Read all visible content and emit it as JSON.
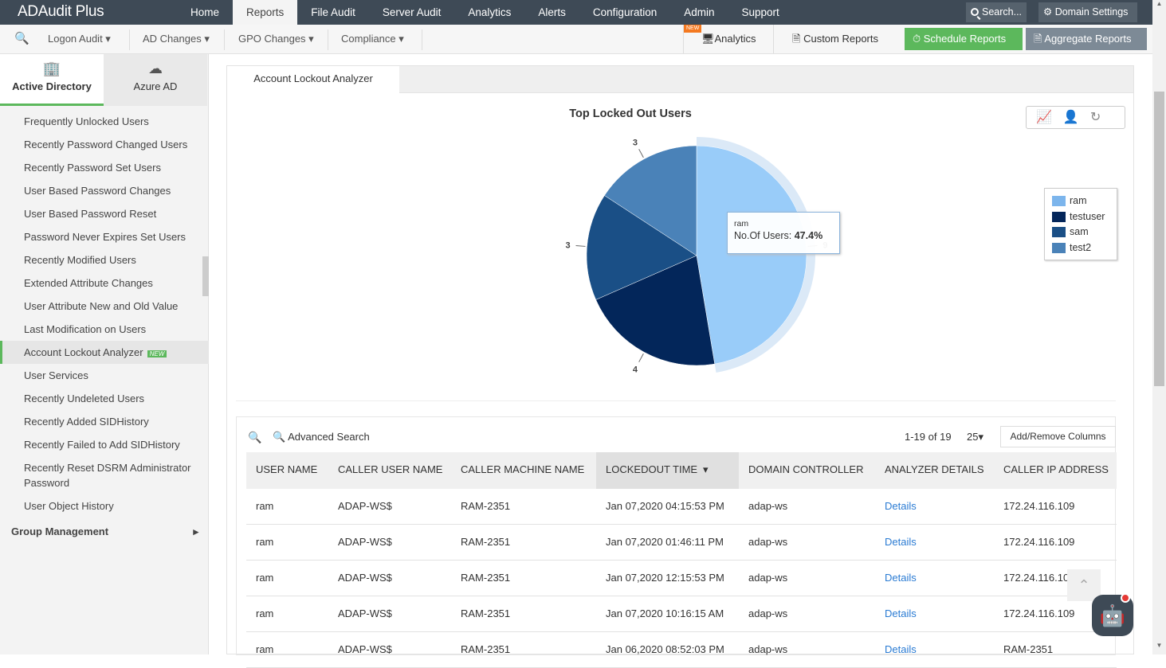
{
  "app": {
    "title": "ADAudit Plus"
  },
  "nav": {
    "items": [
      "Home",
      "Reports",
      "File Audit",
      "Server Audit",
      "Analytics",
      "Alerts",
      "Configuration",
      "Admin",
      "Support"
    ],
    "active": "Reports",
    "search": "Search...",
    "domain_settings": "Domain Settings"
  },
  "subnav": {
    "menus": [
      "Logon Audit",
      "AD Changes",
      "GPO Changes",
      "Compliance"
    ],
    "analytics": "Analytics",
    "new_badge": "NEW",
    "custom_reports": "Custom Reports",
    "schedule_reports": "Schedule Reports",
    "aggregate_reports": "Aggregate Reports"
  },
  "sidebar": {
    "tabs": [
      "Active Directory",
      "Azure AD"
    ],
    "items": [
      "Frequently Unlocked Users",
      "Recently Password Changed Users",
      "Recently Password Set Users",
      "User Based Password Changes",
      "User Based Password Reset",
      "Password Never Expires Set Users",
      "Recently Modified Users",
      "Extended Attribute Changes",
      "User Attribute New and Old Value",
      "Last Modification on Users",
      "Account Lockout Analyzer",
      "User Services",
      "Recently Undeleted Users",
      "Recently Added SIDHistory",
      "Recently Failed to Add SIDHistory",
      "Recently Reset DSRM Administrator Password",
      "User Object History"
    ],
    "active_item": "Account Lockout Analyzer",
    "new_badge": "NEW",
    "group": "Group Management"
  },
  "main": {
    "tab": "Account Lockout Analyzer"
  },
  "chart_data": {
    "type": "pie",
    "title": "Top Locked Out Users",
    "labels": [
      "ram",
      "testuser",
      "sam",
      "test2"
    ],
    "values": [
      9,
      4,
      3,
      3
    ],
    "colors": [
      "#99ccf9",
      "#03265a",
      "#1a4f86",
      "#4a82b8"
    ],
    "legend_colors": [
      "#7cb5ec",
      "#03265a",
      "#1a4f86",
      "#4a82b8"
    ],
    "legend": "right",
    "tooltip": {
      "label": "ram",
      "metric": "No.Of Users:",
      "value": "47.4%"
    }
  },
  "grid": {
    "advanced_search": "Advanced Search",
    "pagination": "1-19 of 19",
    "page_size": "25",
    "add_remove": "Add/Remove Columns",
    "columns": [
      "USER NAME",
      "CALLER USER NAME",
      "CALLER MACHINE NAME",
      "LOCKEDOUT TIME",
      "DOMAIN CONTROLLER",
      "ANALYZER DETAILS",
      "CALLER IP ADDRESS"
    ],
    "rows": [
      [
        "ram",
        "ADAP-WS$",
        "RAM-2351",
        "Jan 07,2020 04:15:53 PM",
        "adap-ws",
        "Details",
        "172.24.116.109"
      ],
      [
        "ram",
        "ADAP-WS$",
        "RAM-2351",
        "Jan 07,2020 01:46:11 PM",
        "adap-ws",
        "Details",
        "172.24.116.109"
      ],
      [
        "ram",
        "ADAP-WS$",
        "RAM-2351",
        "Jan 07,2020 12:15:53 PM",
        "adap-ws",
        "Details",
        "172.24.116.109"
      ],
      [
        "ram",
        "ADAP-WS$",
        "RAM-2351",
        "Jan 07,2020 10:16:15 AM",
        "adap-ws",
        "Details",
        "172.24.116.109"
      ],
      [
        "ram",
        "ADAP-WS$",
        "RAM-2351",
        "Jan 06,2020 08:52:03 PM",
        "adap-ws",
        "Details",
        "RAM-2351"
      ]
    ]
  }
}
